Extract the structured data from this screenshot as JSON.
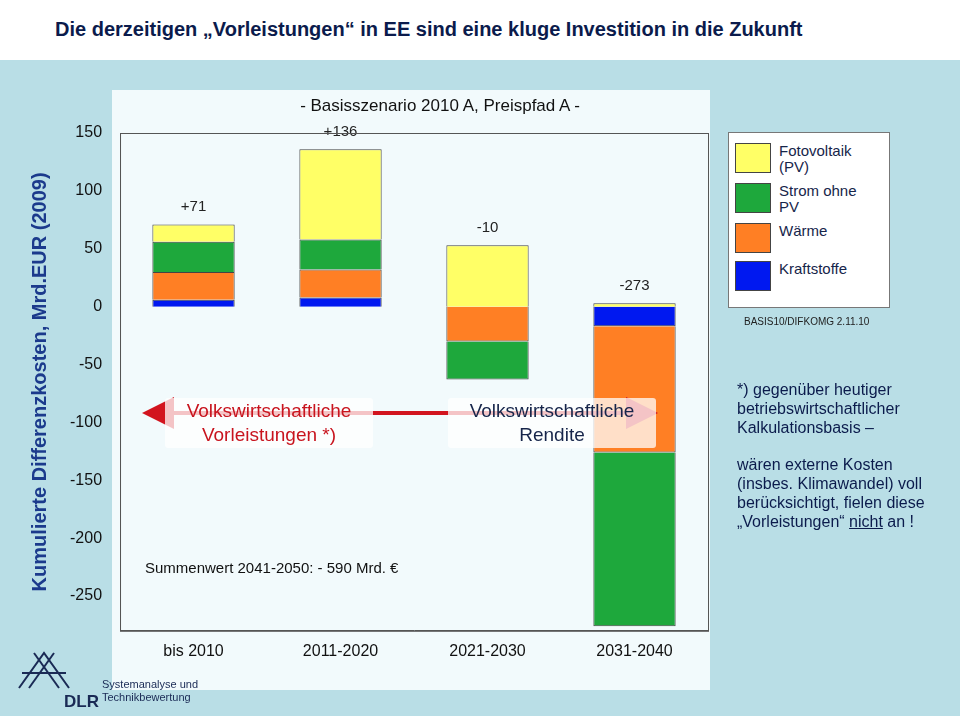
{
  "chart_data": {
    "type": "bar",
    "stacked": true,
    "title": "Die derzeitigen „Vorleistungen“ in EE sind eine kluge Investition in die Zukunft",
    "subtitle": "- Basisszenario 2010 A, Preispfad A -",
    "y_label": "Kumulierte Differenzkosten, Mrd.EUR (2009)",
    "categories": [
      "bis 2010",
      "2011-2020",
      "2021-2030",
      "2031-2040"
    ],
    "series": [
      {
        "name": "Fotovoltaik (PV)",
        "color": "#ffff66",
        "values": [
          15,
          78,
          53,
          3
        ]
      },
      {
        "name": "Strom ohne PV",
        "color": "#1ea83c",
        "values": [
          26,
          26,
          -33,
          -150
        ]
      },
      {
        "name": "Wärme",
        "color": "#ff7f24",
        "values": [
          24,
          24,
          -30,
          -109
        ]
      },
      {
        "name": "Kraftstoffe",
        "color": "#0018f0",
        "values": [
          6,
          8,
          0,
          -17
        ]
      }
    ],
    "totals": [
      71,
      136,
      -10,
      -273
    ],
    "total_labels": [
      "+71",
      "+136",
      "-10",
      "-273"
    ],
    "ylim": [
      -280,
      150
    ],
    "yticks": [
      -250,
      -200,
      -150,
      -100,
      -50,
      0,
      50,
      100,
      150
    ],
    "grid": false,
    "legend": "right",
    "left_arrow_label": [
      "Volkswirtschaftliche",
      "Vorleistungen *)"
    ],
    "right_arrow_label": [
      "Volkswirtschaftliche",
      "Rendite"
    ],
    "sum_note": "Summenwert 2041-2050: - 590 Mrd. €",
    "source_note": "BASIS10/DIFKOMG 2.11.10",
    "footnote": {
      "first": "*) gegenüber heutiger betriebswirtschaftlicher Kalkulationsbasis –",
      "second_before": "wären externe Kosten (insbes. Klimawandel) voll berücksichtigt, fielen diese „Vorleistungen“",
      "second_emphasis": "nicht",
      "second_after": "an !"
    },
    "logo": {
      "name": "DLR",
      "unit": [
        "Systemanalyse und",
        "Technikbewertung"
      ]
    }
  }
}
